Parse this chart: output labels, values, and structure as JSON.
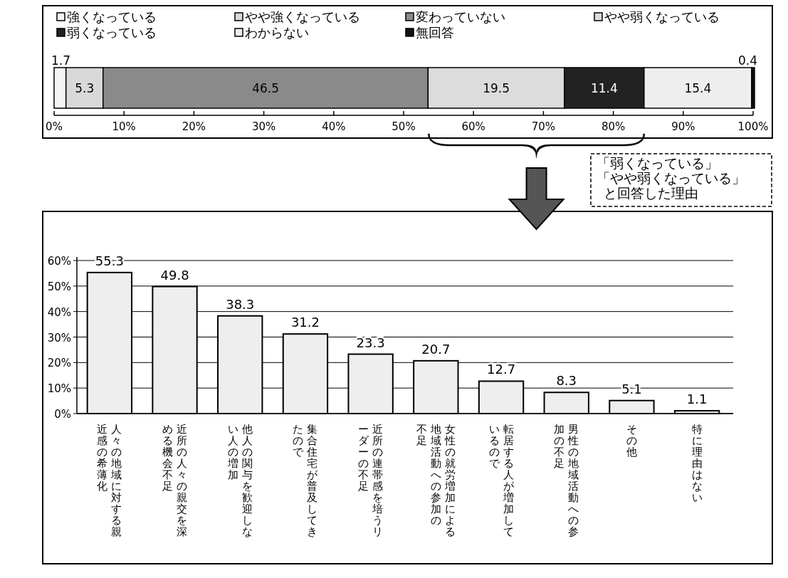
{
  "chart_data": [
    {
      "type": "bar",
      "orientation": "horizontal",
      "stacked": true,
      "categories": [
        null
      ],
      "series": [
        {
          "name": "強くなっている",
          "color": "#f4f4f4",
          "values": [
            1.7
          ]
        },
        {
          "name": "やや強くなっている",
          "color": "#d9d9d9",
          "values": [
            5.3
          ]
        },
        {
          "name": "変わっていない",
          "color": "#8a8a8a",
          "values": [
            46.5
          ]
        },
        {
          "name": "やや弱くなっている",
          "color": "#dcdcdc",
          "values": [
            19.5
          ]
        },
        {
          "name": "弱くなっている",
          "color": "#222222",
          "values": [
            11.4
          ]
        },
        {
          "name": "わからない",
          "color": "#eeeeee",
          "values": [
            15.4
          ]
        },
        {
          "name": "無回答",
          "color": "#111111",
          "values": [
            0.4
          ]
        }
      ],
      "xlim": [
        0,
        100
      ],
      "xticks": [
        {
          "value": 0,
          "label": "0%"
        },
        {
          "value": 10,
          "label": "10%"
        },
        {
          "value": 20,
          "label": "20%"
        },
        {
          "value": 30,
          "label": "30%"
        },
        {
          "value": 40,
          "label": "40%"
        },
        {
          "value": 50,
          "label": "50%"
        },
        {
          "value": 60,
          "label": "60%"
        },
        {
          "value": 70,
          "label": "70%"
        },
        {
          "value": 80,
          "label": "80%"
        },
        {
          "value": 90,
          "label": "90%"
        },
        {
          "value": 100,
          "label": "100%"
        }
      ],
      "data_labels": true,
      "legend": "top"
    },
    {
      "type": "bar",
      "categories": [
        "人々の地域に対する親近感の希薄化",
        "近所の人々の親交を深める機会不足",
        "他人の関与を歓迎しない人の増加",
        "集合住宅が普及してきたので",
        "近所の連帯感を培うリーダーの不足",
        "女性の就労増加による地域活動への参加の不足",
        "転居する人が増加しているので",
        "男性の地域活動への参加の不足",
        "その他",
        "特に理由はない"
      ],
      "values": [
        55.3,
        49.8,
        38.3,
        31.2,
        23.3,
        20.7,
        12.7,
        8.3,
        5.1,
        1.1
      ],
      "color": "#eeeeee",
      "ylim": [
        0,
        60
      ],
      "yticks": [
        {
          "value": 0,
          "label": "0%"
        },
        {
          "value": 10,
          "label": "10%"
        },
        {
          "value": 20,
          "label": "20%"
        },
        {
          "value": 30,
          "label": "30%"
        },
        {
          "value": 40,
          "label": "40%"
        },
        {
          "value": 50,
          "label": "50%"
        },
        {
          "value": 60,
          "label": "60%"
        }
      ],
      "grid": "y",
      "data_labels": true,
      "annotations": [
        "「弱くなっている」「やや弱くなっている」と回答した理由"
      ]
    }
  ]
}
